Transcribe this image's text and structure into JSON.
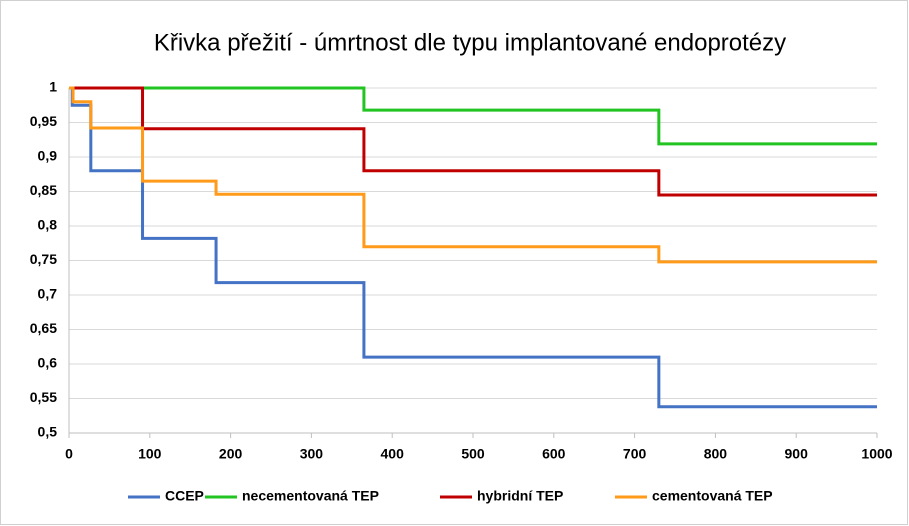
{
  "chart_data": {
    "type": "step-line",
    "title": "Křivka přežití - úmrtnost dle typu implantované endoprotézy",
    "xlim": [
      0,
      1000
    ],
    "xticks": [
      0,
      100,
      200,
      300,
      400,
      500,
      600,
      700,
      800,
      900,
      1000
    ],
    "ylim": [
      0.5,
      1
    ],
    "yticks": [
      {
        "value": 0.5,
        "label": "0,5"
      },
      {
        "value": 0.55,
        "label": "0,55"
      },
      {
        "value": 0.6,
        "label": "0,6"
      },
      {
        "value": 0.65,
        "label": "0,65"
      },
      {
        "value": 0.7,
        "label": "0,7"
      },
      {
        "value": 0.75,
        "label": "0,75"
      },
      {
        "value": 0.8,
        "label": "0,8"
      },
      {
        "value": 0.85,
        "label": "0,85"
      },
      {
        "value": 0.9,
        "label": "0,9"
      },
      {
        "value": 0.95,
        "label": "0,95"
      },
      1
    ],
    "grid": true,
    "legend": "bottom",
    "series": [
      {
        "name": "CCEP",
        "color": "#4472c4",
        "x": [
          0,
          4,
          27,
          91,
          182,
          365,
          730,
          1000
        ],
        "values": [
          1,
          0.975,
          0.88,
          0.782,
          0.718,
          0.61,
          0.538,
          0.538
        ]
      },
      {
        "name": "necementovaná TEP",
        "color": "#22c422",
        "x": [
          0,
          365,
          730,
          1000
        ],
        "values": [
          1,
          0.968,
          0.919,
          0.919
        ]
      },
      {
        "name": "hybridní TEP",
        "color": "#c00000",
        "x": [
          0,
          91,
          365,
          730,
          1000
        ],
        "values": [
          1,
          0.941,
          0.88,
          0.845,
          0.845
        ]
      },
      {
        "name": "cementovaná TEP",
        "color": "#ff9a1a",
        "x": [
          0,
          5,
          27,
          91,
          182,
          365,
          730,
          1000
        ],
        "values": [
          1,
          0.98,
          0.942,
          0.865,
          0.846,
          0.77,
          0.748,
          0.748
        ]
      }
    ]
  }
}
